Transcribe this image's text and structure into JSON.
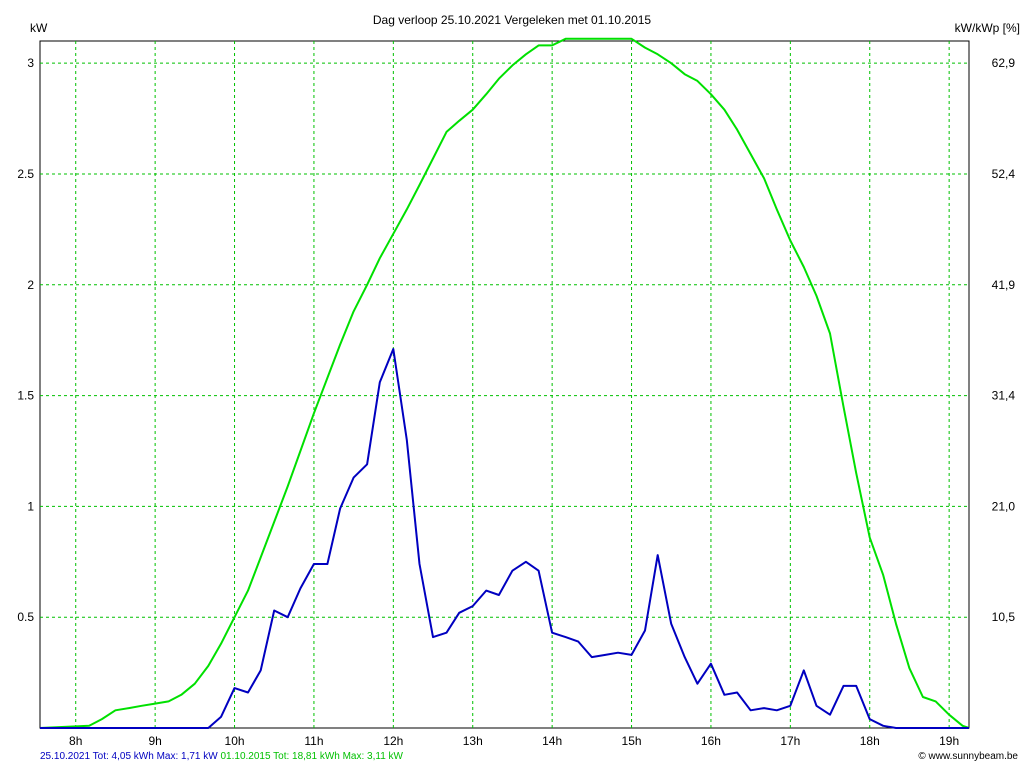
{
  "chart_data": {
    "type": "line",
    "title": "Dag  verloop 25.10.2021   Vergeleken met 01.10.2015",
    "ylabel_left": "kW",
    "ylabel_right": "kW/kWp [%]",
    "x_range": [
      7.55,
      19.25
    ],
    "ylim": [
      0,
      3.1
    ],
    "y_ticks_left": [
      {
        "value": 0.5,
        "label": "0.5"
      },
      {
        "value": 1.0,
        "label": "1"
      },
      {
        "value": 1.5,
        "label": "1.5"
      },
      {
        "value": 2.0,
        "label": "2"
      },
      {
        "value": 2.5,
        "label": "2.5"
      },
      {
        "value": 3.0,
        "label": "3"
      }
    ],
    "y_ticks_right": [
      {
        "value": 0.5,
        "label": "10,5"
      },
      {
        "value": 1.0,
        "label": "21,0"
      },
      {
        "value": 1.5,
        "label": "31,4"
      },
      {
        "value": 2.0,
        "label": "41,9"
      },
      {
        "value": 2.5,
        "label": "52,4"
      },
      {
        "value": 3.0,
        "label": "62,9"
      }
    ],
    "x_ticks": [
      {
        "value": 8,
        "label": "8h"
      },
      {
        "value": 9,
        "label": "9h"
      },
      {
        "value": 10,
        "label": "10h"
      },
      {
        "value": 11,
        "label": "11h"
      },
      {
        "value": 12,
        "label": "12h"
      },
      {
        "value": 13,
        "label": "13h"
      },
      {
        "value": 14,
        "label": "14h"
      },
      {
        "value": 15,
        "label": "15h"
      },
      {
        "value": 16,
        "label": "16h"
      },
      {
        "value": 17,
        "label": "17h"
      },
      {
        "value": 18,
        "label": "18h"
      },
      {
        "value": 19,
        "label": "19h"
      }
    ],
    "grid": true,
    "series": [
      {
        "name": "01.10.2015",
        "color": "#00e000",
        "points": [
          [
            7.55,
            0.0
          ],
          [
            8.17,
            0.01
          ],
          [
            8.33,
            0.04
          ],
          [
            8.5,
            0.08
          ],
          [
            8.67,
            0.09
          ],
          [
            8.83,
            0.1
          ],
          [
            9.0,
            0.11
          ],
          [
            9.17,
            0.12
          ],
          [
            9.33,
            0.15
          ],
          [
            9.5,
            0.2
          ],
          [
            9.67,
            0.28
          ],
          [
            9.83,
            0.38
          ],
          [
            10.0,
            0.5
          ],
          [
            10.17,
            0.62
          ],
          [
            10.33,
            0.77
          ],
          [
            10.5,
            0.93
          ],
          [
            10.67,
            1.09
          ],
          [
            10.83,
            1.25
          ],
          [
            11.0,
            1.42
          ],
          [
            11.17,
            1.58
          ],
          [
            11.33,
            1.73
          ],
          [
            11.5,
            1.88
          ],
          [
            11.67,
            2.0
          ],
          [
            11.83,
            2.12
          ],
          [
            12.0,
            2.23
          ],
          [
            12.17,
            2.34
          ],
          [
            12.33,
            2.45
          ],
          [
            12.5,
            2.57
          ],
          [
            12.67,
            2.69
          ],
          [
            12.83,
            2.74
          ],
          [
            13.0,
            2.79
          ],
          [
            13.17,
            2.86
          ],
          [
            13.33,
            2.93
          ],
          [
            13.5,
            2.99
          ],
          [
            13.67,
            3.04
          ],
          [
            13.83,
            3.08
          ],
          [
            14.0,
            3.08
          ],
          [
            14.17,
            3.11
          ],
          [
            14.33,
            3.11
          ],
          [
            14.5,
            3.11
          ],
          [
            14.67,
            3.11
          ],
          [
            14.83,
            3.11
          ],
          [
            15.0,
            3.11
          ],
          [
            15.17,
            3.07
          ],
          [
            15.33,
            3.04
          ],
          [
            15.5,
            3.0
          ],
          [
            15.67,
            2.95
          ],
          [
            15.83,
            2.92
          ],
          [
            16.0,
            2.86
          ],
          [
            16.17,
            2.79
          ],
          [
            16.33,
            2.7
          ],
          [
            16.5,
            2.59
          ],
          [
            16.67,
            2.48
          ],
          [
            16.83,
            2.34
          ],
          [
            17.0,
            2.2
          ],
          [
            17.17,
            2.08
          ],
          [
            17.33,
            1.95
          ],
          [
            17.5,
            1.78
          ],
          [
            17.67,
            1.45
          ],
          [
            17.83,
            1.15
          ],
          [
            18.0,
            0.86
          ],
          [
            18.17,
            0.69
          ],
          [
            18.33,
            0.47
          ],
          [
            18.5,
            0.27
          ],
          [
            18.67,
            0.14
          ],
          [
            18.83,
            0.12
          ],
          [
            19.0,
            0.06
          ],
          [
            19.17,
            0.01
          ],
          [
            19.25,
            0.0
          ]
        ]
      },
      {
        "name": "25.10.2021",
        "color": "#0000c0",
        "points": [
          [
            7.55,
            0.0
          ],
          [
            9.0,
            0.0
          ],
          [
            9.5,
            0.0
          ],
          [
            9.67,
            0.0
          ],
          [
            9.83,
            0.05
          ],
          [
            10.0,
            0.18
          ],
          [
            10.17,
            0.16
          ],
          [
            10.33,
            0.26
          ],
          [
            10.5,
            0.53
          ],
          [
            10.67,
            0.5
          ],
          [
            10.83,
            0.63
          ],
          [
            11.0,
            0.74
          ],
          [
            11.17,
            0.74
          ],
          [
            11.33,
            0.99
          ],
          [
            11.5,
            1.13
          ],
          [
            11.67,
            1.19
          ],
          [
            11.83,
            1.56
          ],
          [
            12.0,
            1.71
          ],
          [
            12.17,
            1.3
          ],
          [
            12.33,
            0.74
          ],
          [
            12.5,
            0.41
          ],
          [
            12.67,
            0.43
          ],
          [
            12.83,
            0.52
          ],
          [
            13.0,
            0.55
          ],
          [
            13.17,
            0.62
          ],
          [
            13.33,
            0.6
          ],
          [
            13.5,
            0.71
          ],
          [
            13.67,
            0.75
          ],
          [
            13.83,
            0.71
          ],
          [
            14.0,
            0.43
          ],
          [
            14.17,
            0.41
          ],
          [
            14.33,
            0.39
          ],
          [
            14.5,
            0.32
          ],
          [
            14.67,
            0.33
          ],
          [
            14.83,
            0.34
          ],
          [
            15.0,
            0.33
          ],
          [
            15.17,
            0.44
          ],
          [
            15.33,
            0.78
          ],
          [
            15.5,
            0.47
          ],
          [
            15.67,
            0.32
          ],
          [
            15.83,
            0.2
          ],
          [
            16.0,
            0.29
          ],
          [
            16.17,
            0.15
          ],
          [
            16.33,
            0.16
          ],
          [
            16.5,
            0.08
          ],
          [
            16.67,
            0.09
          ],
          [
            16.83,
            0.08
          ],
          [
            17.0,
            0.1
          ],
          [
            17.17,
            0.26
          ],
          [
            17.33,
            0.1
          ],
          [
            17.5,
            0.06
          ],
          [
            17.67,
            0.19
          ],
          [
            17.83,
            0.19
          ],
          [
            18.0,
            0.04
          ],
          [
            18.17,
            0.01
          ],
          [
            18.33,
            0.0
          ],
          [
            19.25,
            0.0
          ]
        ]
      }
    ]
  },
  "footer": {
    "left_text": "25.10.2021 Tot: 4,05 kWh Max: 1,71 kW",
    "right_text": " 01.10.2015 Tot: 18,81 kWh Max: 3,11 kW",
    "left_color": "#0000c0",
    "right_color": "#00c000"
  },
  "credit": {
    "icon": "copyright-icon",
    "text": "© www.sunnybeam.be"
  }
}
